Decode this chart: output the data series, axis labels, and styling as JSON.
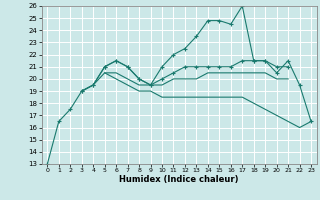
{
  "xlabel": "Humidex (Indice chaleur)",
  "bg_color": "#cce8e8",
  "grid_color": "#ffffff",
  "line_color": "#1a7a6e",
  "xlim": [
    -0.5,
    23.5
  ],
  "ylim": [
    13,
    26
  ],
  "xticks": [
    0,
    1,
    2,
    3,
    4,
    5,
    6,
    7,
    8,
    9,
    10,
    11,
    12,
    13,
    14,
    15,
    16,
    17,
    18,
    19,
    20,
    21,
    22,
    23
  ],
  "yticks": [
    13,
    14,
    15,
    16,
    17,
    18,
    19,
    20,
    21,
    22,
    23,
    24,
    25,
    26
  ],
  "lines": [
    {
      "x": [
        0,
        1,
        2,
        3,
        4,
        5,
        6,
        7,
        8,
        9,
        10,
        11,
        12,
        13,
        14,
        15,
        16,
        17,
        18,
        19,
        20,
        21,
        22,
        23
      ],
      "y": [
        13,
        16.5,
        17.5,
        19,
        19.5,
        21,
        21.5,
        21,
        20,
        19.5,
        21,
        22,
        22.5,
        23.5,
        24.8,
        24.8,
        24.5,
        26,
        21.5,
        21.5,
        20.5,
        21.5,
        19.5,
        16.5
      ],
      "marker": true
    },
    {
      "x": [
        3,
        4,
        5,
        6,
        7,
        8,
        9,
        10,
        11,
        12,
        13,
        14,
        15,
        16,
        17,
        18,
        19,
        20,
        21
      ],
      "y": [
        19,
        19.5,
        21,
        21.5,
        21,
        20,
        19.5,
        20,
        20.5,
        21,
        21,
        21,
        21,
        21,
        21.5,
        21.5,
        21.5,
        21,
        21
      ],
      "marker": true
    },
    {
      "x": [
        3,
        4,
        5,
        6,
        7,
        8,
        9,
        10,
        11,
        12,
        13,
        14,
        15,
        16,
        17,
        18,
        19,
        20,
        21
      ],
      "y": [
        19,
        19.5,
        20.5,
        20.5,
        20,
        19.5,
        19.5,
        19.5,
        20,
        20,
        20,
        20.5,
        20.5,
        20.5,
        20.5,
        20.5,
        20.5,
        20,
        20
      ],
      "marker": false
    },
    {
      "x": [
        5,
        6,
        7,
        8,
        9,
        10,
        11,
        12,
        13,
        14,
        15,
        16,
        17,
        18,
        19,
        20,
        21,
        22,
        23
      ],
      "y": [
        20.5,
        20.0,
        19.5,
        19.0,
        19.0,
        18.5,
        18.5,
        18.5,
        18.5,
        18.5,
        18.5,
        18.5,
        18.5,
        18.0,
        17.5,
        17.0,
        16.5,
        16.0,
        16.5
      ],
      "marker": false
    }
  ]
}
